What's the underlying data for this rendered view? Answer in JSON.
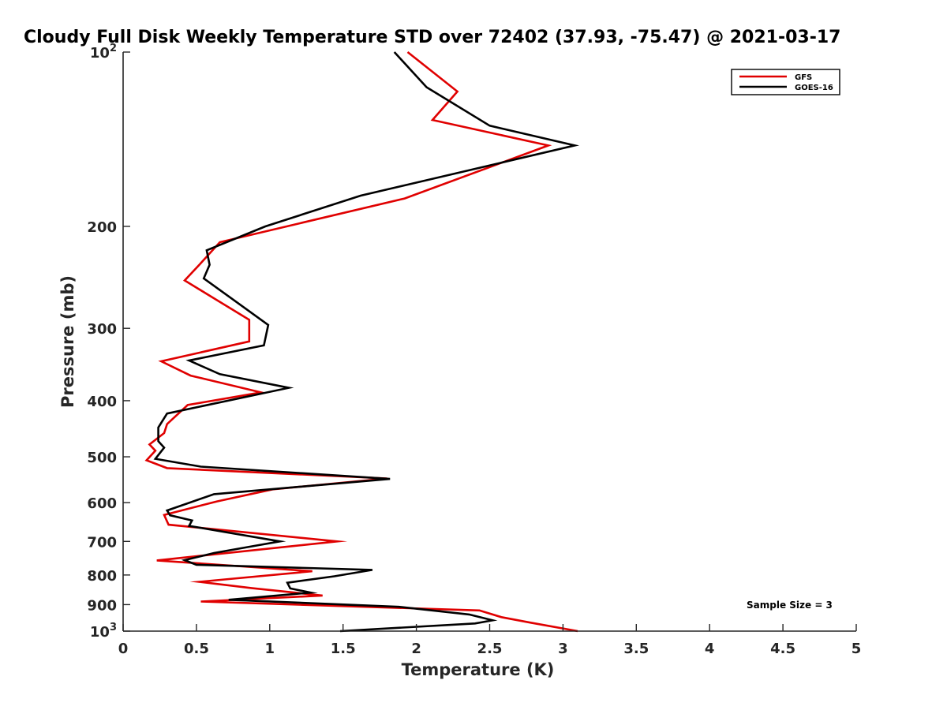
{
  "chart_data": {
    "type": "line",
    "title": "Cloudy Full Disk Weekly Temperature STD over 72402 (37.93, -75.47) @ 2021-03-17",
    "xlabel": "Temperature (K)",
    "ylabel": "Pressure (mb)",
    "xlim": [
      0,
      5
    ],
    "ylim": [
      100,
      1000
    ],
    "y_scale": "log",
    "y_reversed": true,
    "x_ticks": [
      {
        "value": 0,
        "label": "0"
      },
      {
        "value": 0.5,
        "label": "0.5"
      },
      {
        "value": 1,
        "label": "1"
      },
      {
        "value": 1.5,
        "label": "1.5"
      },
      {
        "value": 2,
        "label": "2"
      },
      {
        "value": 2.5,
        "label": "2.5"
      },
      {
        "value": 3,
        "label": "3"
      },
      {
        "value": 3.5,
        "label": "3.5"
      },
      {
        "value": 4,
        "label": "4"
      },
      {
        "value": 4.5,
        "label": "4.5"
      },
      {
        "value": 5,
        "label": "5"
      }
    ],
    "y_ticks": [
      {
        "value": 100,
        "label": "10",
        "sup": "2"
      },
      {
        "value": 200,
        "label": "200",
        "sup": ""
      },
      {
        "value": 300,
        "label": "300",
        "sup": ""
      },
      {
        "value": 400,
        "label": "400",
        "sup": ""
      },
      {
        "value": 500,
        "label": "500",
        "sup": ""
      },
      {
        "value": 600,
        "label": "600",
        "sup": ""
      },
      {
        "value": 700,
        "label": "700",
        "sup": ""
      },
      {
        "value": 800,
        "label": "800",
        "sup": ""
      },
      {
        "value": 900,
        "label": "900",
        "sup": ""
      },
      {
        "value": 1000,
        "label": "10",
        "sup": "3"
      }
    ],
    "grid": false,
    "legend": {
      "position": "top-right"
    },
    "annotation": "Sample Size = 3",
    "series": [
      {
        "name": "GFS",
        "color": "#e00000",
        "points": [
          [
            1.94,
            100
          ],
          [
            2.28,
            117
          ],
          [
            2.11,
            131
          ],
          [
            2.9,
            145
          ],
          [
            1.92,
            179
          ],
          [
            0.66,
            213
          ],
          [
            0.52,
            233
          ],
          [
            0.42,
            248
          ],
          [
            0.86,
            290
          ],
          [
            0.86,
            316
          ],
          [
            0.26,
            342
          ],
          [
            0.46,
            362
          ],
          [
            0.94,
            387
          ],
          [
            0.44,
            407
          ],
          [
            0.3,
            439
          ],
          [
            0.28,
            455
          ],
          [
            0.18,
            476
          ],
          [
            0.22,
            488
          ],
          [
            0.16,
            507
          ],
          [
            0.3,
            523
          ],
          [
            1.8,
            545
          ],
          [
            1.02,
            569
          ],
          [
            0.64,
            597
          ],
          [
            0.28,
            630
          ],
          [
            0.31,
            655
          ],
          [
            1.46,
            700
          ],
          [
            0.23,
            755
          ],
          [
            1.29,
            788
          ],
          [
            0.52,
            822
          ],
          [
            0.88,
            843
          ],
          [
            1.36,
            868
          ],
          [
            0.53,
            889
          ],
          [
            2.43,
            921
          ],
          [
            2.58,
            946
          ],
          [
            2.78,
            967
          ],
          [
            3.1,
            1000
          ]
        ]
      },
      {
        "name": "GOES-16",
        "color": "#000000",
        "points": [
          [
            1.85,
            100
          ],
          [
            2.07,
            115
          ],
          [
            2.5,
            134
          ],
          [
            3.08,
            145
          ],
          [
            1.62,
            177
          ],
          [
            0.97,
            200
          ],
          [
            0.57,
            220
          ],
          [
            0.59,
            233
          ],
          [
            0.55,
            246
          ],
          [
            0.99,
            296
          ],
          [
            0.96,
            321
          ],
          [
            0.45,
            341
          ],
          [
            0.66,
            360
          ],
          [
            1.13,
            380
          ],
          [
            0.3,
            421
          ],
          [
            0.24,
            445
          ],
          [
            0.24,
            470
          ],
          [
            0.28,
            482
          ],
          [
            0.22,
            504
          ],
          [
            0.53,
            520
          ],
          [
            1.82,
            546
          ],
          [
            0.62,
            580
          ],
          [
            0.3,
            619
          ],
          [
            0.32,
            631
          ],
          [
            0.47,
            644
          ],
          [
            0.45,
            658
          ],
          [
            1.07,
            700
          ],
          [
            0.62,
            733
          ],
          [
            0.42,
            754
          ],
          [
            0.5,
            768
          ],
          [
            1.7,
            784
          ],
          [
            1.44,
            804
          ],
          [
            1.12,
            825
          ],
          [
            1.14,
            844
          ],
          [
            1.28,
            858
          ],
          [
            0.72,
            883
          ],
          [
            1.88,
            908
          ],
          [
            2.36,
            936
          ],
          [
            2.52,
            958
          ],
          [
            2.44,
            966
          ],
          [
            2.4,
            970
          ],
          [
            1.48,
            1000
          ]
        ]
      }
    ]
  }
}
